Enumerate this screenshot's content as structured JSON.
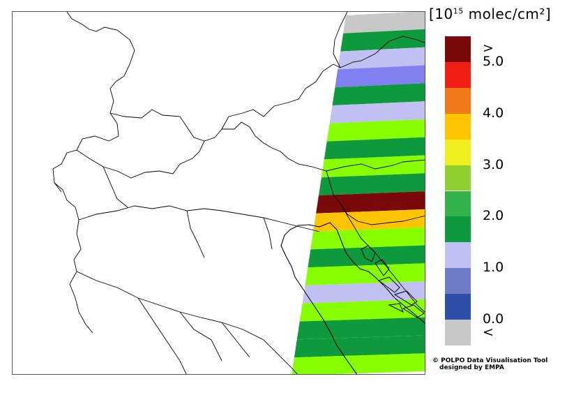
{
  "unit": {
    "prefix": "[10",
    "exponent": "15",
    "suffix": " molec/cm²]"
  },
  "colorbar": {
    "bins": [
      {
        "color": "#c8c8c8",
        "label": "<"
      },
      {
        "color": "#2e4fa8",
        "label": ""
      },
      {
        "color": "#6f7bc8",
        "label": ""
      },
      {
        "color": "#c0c0f2",
        "label": ""
      },
      {
        "color": "#0e9a3c",
        "label": ""
      },
      {
        "color": "#33b24c",
        "label": ""
      },
      {
        "color": "#8fcf30",
        "label": ""
      },
      {
        "color": "#f0f020",
        "label": ""
      },
      {
        "color": "#ffc400",
        "label": ""
      },
      {
        "color": "#f07a18",
        "label": ""
      },
      {
        "color": "#f01e14",
        "label": ""
      },
      {
        "color": "#7a0a0a",
        "label": ">"
      }
    ],
    "tick_labels": [
      "0.0",
      "1.0",
      "2.0",
      "3.0",
      "4.0",
      "5.0"
    ],
    "min": 0.0,
    "max": 5.0
  },
  "swath": {
    "bands": [
      {
        "color": "#c8c8c8",
        "value": null
      },
      {
        "color": "#0e9a3c",
        "value": 2.0
      },
      {
        "color": "#c0c0f2",
        "value": 1.3
      },
      {
        "color": "#8080f0",
        "value": 0.8
      },
      {
        "color": "#0e9a3c",
        "value": 2.0
      },
      {
        "color": "#c0c0f2",
        "value": 1.3
      },
      {
        "color": "#88ff00",
        "value": 2.6
      },
      {
        "color": "#0e9a3c",
        "value": 2.0
      },
      {
        "color": "#88ff00",
        "value": 2.6
      },
      {
        "color": "#0e9a3c",
        "value": 2.0
      },
      {
        "color": "#7a0a0a",
        "value": 5.5
      },
      {
        "color": "#ffc400",
        "value": 3.8
      },
      {
        "color": "#88ff00",
        "value": 2.6
      },
      {
        "color": "#0e9a3c",
        "value": 2.0
      },
      {
        "color": "#88ff00",
        "value": 2.6
      },
      {
        "color": "#c0c0f2",
        "value": 1.3
      },
      {
        "color": "#88ff00",
        "value": 2.6
      },
      {
        "color": "#0e9a3c",
        "value": 2.0
      },
      {
        "color": "#0e9a3c",
        "value": 2.0
      },
      {
        "color": "#88ff00",
        "value": 2.6
      }
    ]
  },
  "credit": {
    "line1": "© POLPO Data Visualisation Tool",
    "line2": "designed by EMPA"
  }
}
